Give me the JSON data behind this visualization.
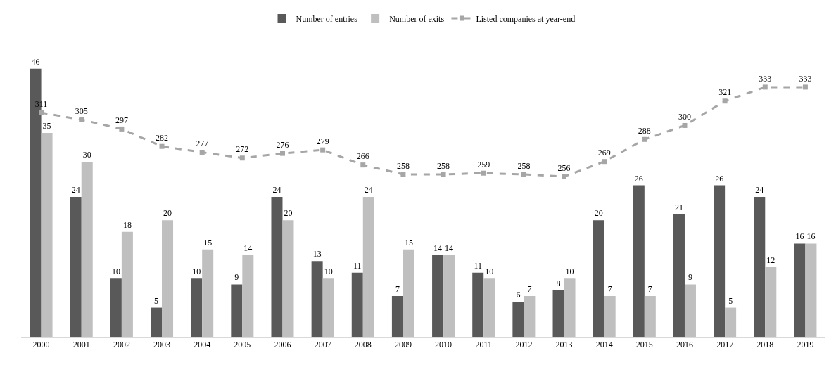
{
  "chart_data": {
    "type": "bar",
    "categories": [
      "2000",
      "2001",
      "2002",
      "2003",
      "2004",
      "2005",
      "2006",
      "2007",
      "2008",
      "2009",
      "2010",
      "2011",
      "2012",
      "2013",
      "2014",
      "2015",
      "2016",
      "2017",
      "2018",
      "2019"
    ],
    "series": [
      {
        "name": "Number of entries",
        "color": "#595959",
        "values": [
          46,
          24,
          10,
          5,
          10,
          9,
          24,
          13,
          11,
          7,
          14,
          11,
          6,
          8,
          20,
          26,
          21,
          26,
          24,
          16
        ]
      },
      {
        "name": "Number of exits",
        "color": "#bfbfbf",
        "values": [
          35,
          30,
          18,
          20,
          15,
          14,
          20,
          10,
          24,
          15,
          14,
          10,
          7,
          10,
          7,
          7,
          9,
          5,
          12,
          16
        ]
      },
      {
        "name": "Listed companies at year-end",
        "type": "line",
        "axis": "y2",
        "color": "#a6a6a6",
        "line_style": "dashed",
        "marker": "square",
        "values": [
          311,
          305,
          297,
          282,
          277,
          272,
          276,
          279,
          266,
          258,
          258,
          259,
          258,
          256,
          269,
          288,
          300,
          321,
          333,
          333
        ]
      }
    ],
    "tick_labels": "x",
    "data_labels": true,
    "grid": false,
    "legend": "top"
  }
}
